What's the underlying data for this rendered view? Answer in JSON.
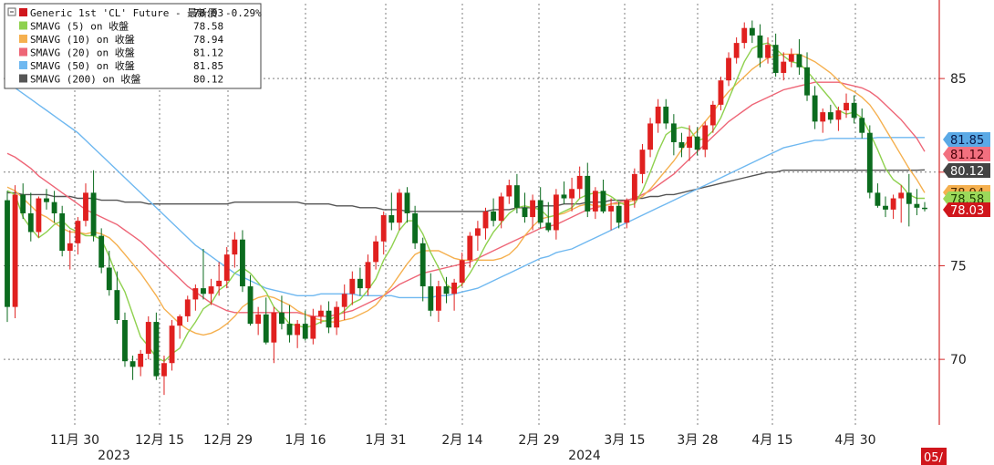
{
  "chart_data": {
    "type": "candlestick",
    "x_axis": {
      "ticks": [
        "11月 30",
        "12月 15",
        "12月 29",
        "1月 16",
        "1月 31",
        "2月 14",
        "2月 29",
        "3月 15",
        "3月 28",
        "4月 15",
        "4月 30"
      ],
      "years": [
        "2023",
        "2024"
      ],
      "edge_label": "05/"
    },
    "y_axis": {
      "side": "right",
      "ticks": [
        70,
        75,
        85
      ],
      "ylim": [
        66.5,
        89
      ]
    },
    "legend": [
      {
        "label": "Generic 1st 'CL' Future - 最新價",
        "value": "78.03",
        "change": "-0.29%",
        "color": "#d0161c"
      },
      {
        "label": "SMAVG (5)  on 收盤",
        "value": "78.58",
        "color": "#8fd14f"
      },
      {
        "label": "SMAVG (10)  on 收盤",
        "value": "78.94",
        "color": "#f5b04f"
      },
      {
        "label": "SMAVG (20)  on 收盤",
        "value": "81.12",
        "color": "#ee6677"
      },
      {
        "label": "SMAVG (50)  on 收盤",
        "value": "81.85",
        "color": "#6fb8f0"
      },
      {
        "label": "SMAVG (200)  on 收盤",
        "value": "80.12",
        "color": "#555555"
      }
    ],
    "value_tags": [
      {
        "value": 81.85,
        "text": "81.85",
        "bg": "#5aa9e6",
        "fg": "#0a1a4a"
      },
      {
        "value": 81.12,
        "text": "81.12",
        "bg": "#f2707f",
        "fg": "#4a0008"
      },
      {
        "value": 80.12,
        "text": "80.12",
        "bg": "#444444",
        "fg": "#ffffff"
      },
      {
        "value": 78.94,
        "text": "78.94",
        "bg": "#f5b04f",
        "fg": "#4a2a00"
      },
      {
        "value": 78.58,
        "text": "78.58",
        "bg": "#9bd85a",
        "fg": "#1a3a00"
      },
      {
        "value": 78.03,
        "text": "78.03",
        "bg": "#d0161c",
        "fg": "#ffffff"
      }
    ],
    "candles": [
      [
        78.5,
        79.0,
        72.0,
        72.8
      ],
      [
        72.8,
        79.3,
        72.2,
        78.8
      ],
      [
        78.8,
        79.4,
        77.5,
        77.8
      ],
      [
        77.8,
        78.9,
        76.3,
        76.8
      ],
      [
        76.8,
        78.7,
        76.5,
        78.6
      ],
      [
        78.6,
        79.1,
        78.0,
        78.4
      ],
      [
        78.4,
        79.0,
        77.3,
        77.8
      ],
      [
        77.8,
        78.2,
        75.5,
        75.8
      ],
      [
        75.8,
        76.9,
        74.8,
        76.2
      ],
      [
        76.2,
        77.6,
        75.6,
        77.4
      ],
      [
        77.4,
        79.4,
        77.1,
        78.9
      ],
      [
        78.9,
        80.1,
        76.3,
        76.6
      ],
      [
        76.6,
        77.0,
        74.6,
        74.9
      ],
      [
        74.9,
        75.8,
        73.4,
        73.7
      ],
      [
        73.7,
        74.7,
        71.9,
        72.1
      ],
      [
        72.1,
        72.5,
        69.6,
        69.9
      ],
      [
        69.9,
        70.2,
        68.9,
        69.6
      ],
      [
        69.6,
        70.5,
        69.1,
        70.3
      ],
      [
        70.3,
        72.3,
        70.0,
        72.0
      ],
      [
        72.0,
        72.5,
        68.9,
        69.1
      ],
      [
        69.1,
        70.2,
        68.1,
        69.8
      ],
      [
        69.8,
        72.1,
        69.4,
        71.8
      ],
      [
        71.8,
        72.4,
        71.1,
        72.3
      ],
      [
        72.3,
        73.4,
        72.0,
        73.2
      ],
      [
        73.2,
        74.0,
        72.6,
        73.8
      ],
      [
        73.8,
        75.9,
        73.2,
        73.5
      ],
      [
        73.5,
        74.3,
        72.9,
        73.9
      ],
      [
        73.9,
        75.2,
        73.4,
        74.2
      ],
      [
        74.2,
        76.0,
        73.8,
        75.6
      ],
      [
        75.6,
        76.8,
        74.9,
        76.4
      ],
      [
        76.4,
        76.9,
        73.6,
        73.9
      ],
      [
        73.9,
        74.5,
        71.8,
        71.9
      ],
      [
        71.9,
        72.8,
        71.3,
        72.4
      ],
      [
        72.4,
        73.3,
        70.8,
        70.9
      ],
      [
        70.9,
        72.8,
        69.8,
        72.5
      ],
      [
        72.5,
        73.4,
        71.6,
        71.9
      ],
      [
        71.9,
        72.9,
        70.9,
        71.3
      ],
      [
        71.3,
        72.1,
        70.6,
        71.9
      ],
      [
        71.9,
        72.6,
        71.0,
        71.1
      ],
      [
        71.1,
        72.7,
        70.8,
        72.3
      ],
      [
        72.3,
        72.9,
        71.9,
        72.6
      ],
      [
        72.6,
        73.1,
        71.4,
        71.7
      ],
      [
        71.7,
        73.1,
        71.3,
        72.8
      ],
      [
        72.8,
        74.0,
        72.1,
        73.5
      ],
      [
        73.5,
        74.7,
        72.9,
        74.3
      ],
      [
        74.3,
        74.9,
        73.4,
        73.8
      ],
      [
        73.8,
        75.6,
        73.4,
        75.2
      ],
      [
        75.2,
        76.6,
        74.8,
        76.3
      ],
      [
        76.3,
        77.9,
        75.6,
        77.7
      ],
      [
        77.7,
        78.9,
        76.9,
        77.3
      ],
      [
        77.3,
        79.1,
        76.9,
        78.9
      ],
      [
        78.9,
        79.2,
        77.3,
        77.8
      ],
      [
        77.8,
        78.2,
        75.9,
        76.2
      ],
      [
        76.2,
        76.5,
        73.1,
        73.9
      ],
      [
        73.9,
        74.6,
        72.3,
        72.6
      ],
      [
        72.6,
        74.2,
        72.0,
        73.9
      ],
      [
        73.9,
        74.4,
        73.0,
        73.5
      ],
      [
        73.5,
        74.3,
        72.6,
        74.1
      ],
      [
        74.1,
        75.7,
        73.9,
        75.3
      ],
      [
        75.3,
        76.8,
        74.9,
        76.6
      ],
      [
        76.6,
        77.4,
        75.8,
        77.0
      ],
      [
        77.0,
        78.1,
        76.4,
        77.9
      ],
      [
        77.9,
        78.6,
        77.1,
        77.4
      ],
      [
        77.4,
        78.9,
        77.0,
        78.7
      ],
      [
        78.7,
        79.6,
        78.3,
        79.3
      ],
      [
        79.3,
        79.9,
        77.8,
        78.1
      ],
      [
        78.1,
        78.9,
        77.3,
        77.6
      ],
      [
        77.6,
        78.8,
        76.9,
        78.5
      ],
      [
        78.5,
        79.2,
        77.0,
        77.3
      ],
      [
        77.3,
        78.4,
        76.8,
        76.9
      ],
      [
        76.9,
        79.1,
        76.4,
        78.8
      ],
      [
        78.8,
        79.5,
        78.3,
        78.6
      ],
      [
        78.6,
        79.7,
        77.9,
        79.1
      ],
      [
        79.1,
        80.3,
        78.6,
        79.8
      ],
      [
        79.8,
        80.5,
        77.6,
        77.9
      ],
      [
        77.9,
        79.2,
        77.5,
        79.0
      ],
      [
        79.0,
        79.6,
        77.8,
        77.9
      ],
      [
        77.9,
        78.6,
        76.9,
        78.2
      ],
      [
        78.2,
        78.4,
        77.0,
        77.3
      ],
      [
        77.3,
        78.6,
        77.0,
        78.5
      ],
      [
        78.5,
        80.2,
        78.1,
        79.9
      ],
      [
        79.9,
        81.5,
        79.4,
        81.2
      ],
      [
        81.2,
        82.9,
        80.8,
        82.6
      ],
      [
        82.6,
        83.9,
        82.1,
        83.5
      ],
      [
        83.5,
        83.9,
        82.3,
        82.6
      ],
      [
        82.6,
        83.1,
        80.9,
        81.6
      ],
      [
        81.6,
        82.1,
        80.8,
        81.3
      ],
      [
        81.3,
        82.5,
        80.6,
        81.9
      ],
      [
        81.9,
        82.4,
        80.9,
        81.2
      ],
      [
        81.2,
        82.7,
        80.8,
        82.5
      ],
      [
        82.5,
        83.8,
        82.1,
        83.6
      ],
      [
        83.6,
        85.1,
        83.3,
        84.9
      ],
      [
        84.9,
        86.4,
        84.6,
        86.1
      ],
      [
        86.1,
        87.2,
        85.8,
        86.9
      ],
      [
        86.9,
        88.0,
        86.6,
        87.7
      ],
      [
        87.7,
        88.1,
        86.9,
        87.3
      ],
      [
        87.3,
        87.9,
        85.6,
        86.1
      ],
      [
        86.1,
        87.2,
        85.8,
        86.8
      ],
      [
        86.8,
        87.4,
        85.1,
        85.3
      ],
      [
        85.3,
        86.4,
        84.9,
        85.9
      ],
      [
        85.9,
        86.6,
        85.6,
        86.3
      ],
      [
        86.3,
        87.1,
        85.2,
        85.6
      ],
      [
        85.6,
        86.4,
        83.8,
        84.1
      ],
      [
        84.1,
        84.6,
        82.3,
        82.7
      ],
      [
        82.7,
        83.4,
        82.1,
        83.2
      ],
      [
        83.2,
        83.6,
        82.6,
        82.8
      ],
      [
        82.8,
        83.5,
        82.2,
        83.3
      ],
      [
        83.3,
        84.2,
        82.9,
        83.7
      ],
      [
        83.7,
        84.1,
        82.6,
        82.9
      ],
      [
        82.9,
        83.4,
        81.8,
        82.1
      ],
      [
        82.1,
        82.5,
        78.6,
        78.9
      ],
      [
        78.9,
        79.4,
        78.1,
        78.2
      ],
      [
        78.2,
        78.7,
        77.6,
        78.0
      ],
      [
        78.0,
        78.8,
        77.5,
        78.6
      ],
      [
        78.6,
        79.3,
        77.3,
        78.9
      ],
      [
        78.9,
        79.9,
        77.1,
        78.3
      ],
      [
        78.3,
        79.1,
        77.7,
        78.1
      ],
      [
        78.1,
        78.4,
        77.9,
        78.03
      ]
    ],
    "sma5": [
      79.0,
      78.8,
      77.6,
      77.0,
      76.5,
      76.8,
      77.2,
      77.4,
      77.0,
      76.8,
      76.6,
      76.6,
      76.4,
      75.5,
      74.4,
      73.6,
      72.4,
      71.2,
      70.7,
      70.1,
      69.9,
      70.3,
      70.6,
      71.4,
      72.0,
      72.7,
      73.0,
      73.7,
      74.0,
      74.6,
      74.9,
      74.6,
      74.1,
      73.6,
      72.8,
      72.4,
      71.9,
      71.8,
      71.7,
      71.8,
      72.0,
      72.1,
      72.3,
      72.6,
      73.0,
      73.2,
      73.7,
      74.3,
      75.3,
      76.0,
      76.9,
      77.4,
      77.4,
      76.7,
      75.7,
      74.9,
      74.0,
      73.7,
      74.0,
      74.6,
      75.3,
      76.1,
      76.8,
      77.3,
      77.8,
      78.1,
      78.2,
      78.1,
      78.0,
      77.6,
      77.7,
      77.9,
      78.1,
      78.6,
      78.8,
      78.9,
      78.9,
      78.7,
      78.4,
      78.2,
      78.3,
      79.0,
      80.0,
      81.1,
      82.0,
      82.3,
      82.4,
      82.3,
      81.7,
      81.8,
      82.2,
      82.9,
      83.9,
      84.9,
      85.9,
      86.6,
      86.8,
      86.9,
      86.6,
      86.2,
      85.9,
      85.8,
      85.4,
      84.9,
      84.4,
      83.9,
      83.3,
      83.1,
      83.2,
      82.9,
      82.1,
      81.2,
      80.2,
      79.6,
      79.3,
      78.8,
      78.6,
      78.6
    ],
    "sma10": [
      79.2,
      79.0,
      78.6,
      78.2,
      77.8,
      77.6,
      77.3,
      77.0,
      76.8,
      76.8,
      76.7,
      76.8,
      76.7,
      76.5,
      76.1,
      75.6,
      75.1,
      74.6,
      74.0,
      73.4,
      72.7,
      72.3,
      71.9,
      71.6,
      71.4,
      71.3,
      71.4,
      71.6,
      71.9,
      72.3,
      72.8,
      73.1,
      73.3,
      73.4,
      73.3,
      73.1,
      72.9,
      72.6,
      72.4,
      72.2,
      72.1,
      72.0,
      72.0,
      72.1,
      72.2,
      72.4,
      72.6,
      72.9,
      73.4,
      73.9,
      74.5,
      75.1,
      75.6,
      75.8,
      75.8,
      75.8,
      75.6,
      75.4,
      75.3,
      75.3,
      75.3,
      75.3,
      75.3,
      75.4,
      75.6,
      76.0,
      76.6,
      77.1,
      77.5,
      77.6,
      77.7,
      77.8,
      78.0,
      78.2,
      78.3,
      78.2,
      78.2,
      78.3,
      78.3,
      78.4,
      78.5,
      78.7,
      79.1,
      79.6,
      80.1,
      80.6,
      81.2,
      81.8,
      82.2,
      82.7,
      83.2,
      83.8,
      84.3,
      84.7,
      85.1,
      85.5,
      85.8,
      86.1,
      86.2,
      86.3,
      86.3,
      86.3,
      86.1,
      85.9,
      85.6,
      85.3,
      84.9,
      84.5,
      84.3,
      84.0,
      83.6,
      83.0,
      82.3,
      81.6,
      80.9,
      80.2,
      79.6,
      78.9
    ],
    "sma20": [
      81.0,
      80.8,
      80.5,
      80.2,
      79.8,
      79.5,
      79.2,
      78.9,
      78.6,
      78.3,
      78.0,
      77.8,
      77.6,
      77.4,
      77.2,
      76.9,
      76.6,
      76.3,
      75.9,
      75.5,
      75.1,
      74.7,
      74.3,
      73.9,
      73.6,
      73.3,
      73.0,
      72.8,
      72.6,
      72.5,
      72.5,
      72.5,
      72.5,
      72.5,
      72.5,
      72.5,
      72.5,
      72.5,
      72.4,
      72.3,
      72.3,
      72.3,
      72.4,
      72.5,
      72.6,
      72.8,
      73.0,
      73.2,
      73.4,
      73.7,
      74.0,
      74.2,
      74.4,
      74.6,
      74.7,
      74.8,
      74.9,
      75.0,
      75.1,
      75.2,
      75.4,
      75.6,
      75.8,
      76.0,
      76.2,
      76.4,
      76.6,
      76.8,
      77.0,
      77.1,
      77.2,
      77.4,
      77.6,
      77.8,
      78.0,
      78.1,
      78.2,
      78.3,
      78.4,
      78.5,
      78.6,
      78.8,
      79.0,
      79.3,
      79.6,
      79.9,
      80.3,
      80.7,
      81.1,
      81.5,
      81.9,
      82.3,
      82.7,
      83.0,
      83.3,
      83.6,
      83.8,
      84.0,
      84.2,
      84.4,
      84.5,
      84.6,
      84.7,
      84.8,
      84.8,
      84.8,
      84.8,
      84.7,
      84.6,
      84.5,
      84.3,
      84.0,
      83.6,
      83.2,
      82.8,
      82.3,
      81.8,
      81.1
    ],
    "sma50": [
      84.8,
      84.5,
      84.2,
      83.9,
      83.6,
      83.3,
      83.0,
      82.7,
      82.4,
      82.1,
      81.7,
      81.3,
      80.9,
      80.5,
      80.1,
      79.7,
      79.3,
      78.9,
      78.5,
      78.1,
      77.7,
      77.3,
      76.9,
      76.5,
      76.1,
      75.8,
      75.5,
      75.2,
      74.9,
      74.6,
      74.4,
      74.2,
      74.0,
      73.8,
      73.7,
      73.6,
      73.5,
      73.4,
      73.4,
      73.4,
      73.5,
      73.5,
      73.5,
      73.5,
      73.5,
      73.4,
      73.4,
      73.4,
      73.4,
      73.4,
      73.3,
      73.3,
      73.3,
      73.3,
      73.3,
      73.4,
      73.4,
      73.5,
      73.6,
      73.7,
      73.8,
      74.0,
      74.2,
      74.4,
      74.6,
      74.8,
      75.0,
      75.2,
      75.4,
      75.5,
      75.7,
      75.8,
      75.9,
      76.1,
      76.3,
      76.5,
      76.7,
      76.9,
      77.1,
      77.3,
      77.5,
      77.7,
      77.9,
      78.1,
      78.3,
      78.5,
      78.7,
      78.9,
      79.1,
      79.3,
      79.5,
      79.7,
      79.9,
      80.1,
      80.3,
      80.5,
      80.7,
      80.9,
      81.1,
      81.3,
      81.4,
      81.5,
      81.6,
      81.7,
      81.7,
      81.8,
      81.8,
      81.8,
      81.8,
      81.8,
      81.8,
      81.85,
      81.85,
      81.85,
      81.85,
      81.85,
      81.85,
      81.85
    ],
    "sma200": [
      78.9,
      78.9,
      78.8,
      78.8,
      78.8,
      78.8,
      78.7,
      78.7,
      78.7,
      78.6,
      78.6,
      78.6,
      78.5,
      78.5,
      78.5,
      78.4,
      78.4,
      78.4,
      78.3,
      78.3,
      78.3,
      78.3,
      78.3,
      78.3,
      78.3,
      78.3,
      78.3,
      78.3,
      78.3,
      78.4,
      78.4,
      78.4,
      78.4,
      78.4,
      78.4,
      78.4,
      78.4,
      78.4,
      78.3,
      78.3,
      78.3,
      78.3,
      78.2,
      78.2,
      78.2,
      78.1,
      78.1,
      78.1,
      78.0,
      78.0,
      78.0,
      77.9,
      77.9,
      77.9,
      77.9,
      77.9,
      77.9,
      77.9,
      77.9,
      77.9,
      77.9,
      77.9,
      78.0,
      78.0,
      78.0,
      78.1,
      78.1,
      78.1,
      78.2,
      78.2,
      78.2,
      78.3,
      78.3,
      78.3,
      78.4,
      78.4,
      78.4,
      78.5,
      78.5,
      78.5,
      78.6,
      78.6,
      78.7,
      78.7,
      78.8,
      78.8,
      78.9,
      79.0,
      79.1,
      79.2,
      79.3,
      79.4,
      79.5,
      79.6,
      79.7,
      79.8,
      79.9,
      80.0,
      80.0,
      80.1,
      80.1,
      80.1,
      80.1,
      80.1,
      80.1,
      80.1,
      80.1,
      80.1,
      80.1,
      80.1,
      80.1,
      80.1,
      80.1,
      80.1,
      80.1,
      80.1,
      80.1,
      80.12
    ]
  }
}
